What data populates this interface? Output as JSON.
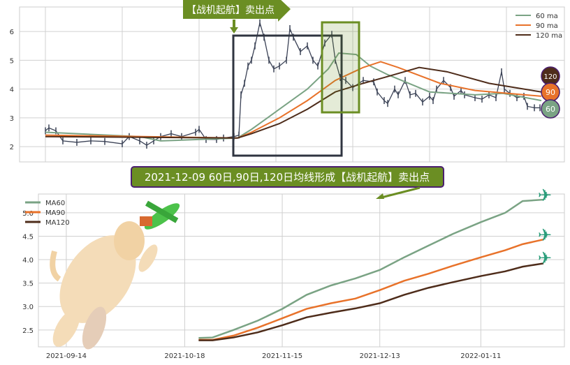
{
  "colors": {
    "ma60": "#7aa384",
    "ma90": "#e8722a",
    "ma120": "#4e2c1a",
    "price": "#3b4256",
    "banner": "#6b8e23",
    "banner_border": "#4b1f6f",
    "box": "#2f3440",
    "grid": "#d0d0d0"
  },
  "top_banner": "【战机起航】卖出点",
  "main_banner": "2021-12-09 60日,90日,120日均线形成【战机起航】卖出点",
  "badges": [
    "120",
    "90",
    "60"
  ],
  "chart_data": [
    {
      "type": "line",
      "title": "",
      "ylim": [
        1.47,
        6.85
      ],
      "yticks": [
        "2",
        "3",
        "4",
        "5",
        "6"
      ],
      "grid": true,
      "legend": {
        "placement": "top-right",
        "entries": [
          "60 ma",
          "90 ma",
          "120 ma"
        ]
      },
      "price": {
        "x": [
          0,
          5,
          15,
          25,
          45,
          65,
          85,
          110,
          120,
          135,
          145,
          155,
          165,
          180,
          195,
          215,
          220,
          230,
          245,
          255,
          270,
          277,
          280,
          285,
          290,
          295,
          300,
          307,
          313,
          320,
          327,
          335,
          345,
          350,
          355,
          365,
          375,
          383,
          390,
          400,
          410,
          415,
          422,
          430,
          440,
          455,
          470,
          475,
          485,
          490,
          500,
          505,
          515,
          522,
          530,
          540,
          550,
          555,
          560,
          570,
          580,
          585,
          595,
          600,
          615,
          625,
          635,
          645,
          653,
          657,
          665,
          675,
          685,
          690,
          700,
          708
        ],
        "values": [
          2.55,
          2.65,
          2.55,
          2.2,
          2.15,
          2.2,
          2.18,
          2.1,
          2.35,
          2.2,
          2.05,
          2.2,
          2.35,
          2.45,
          2.35,
          2.5,
          2.6,
          2.25,
          2.25,
          2.3,
          2.35,
          2.4,
          3.8,
          4.2,
          4.8,
          5.0,
          5.5,
          6.3,
          5.8,
          5.0,
          4.7,
          4.8,
          5.0,
          6.1,
          5.8,
          5.3,
          5.5,
          5.0,
          4.8,
          5.6,
          5.9,
          5.0,
          4.4,
          4.3,
          4.05,
          4.3,
          4.25,
          3.9,
          3.6,
          3.5,
          4.0,
          3.8,
          4.3,
          3.8,
          3.85,
          3.55,
          3.75,
          3.6,
          4.0,
          4.3,
          4.05,
          3.75,
          3.95,
          3.8,
          3.7,
          3.65,
          3.8,
          3.7,
          4.6,
          4.0,
          3.85,
          3.7,
          3.75,
          3.4,
          3.35,
          3.35
        ]
      },
      "series": [
        {
          "name": "60 ma",
          "x": [
            0,
            135,
            165,
            275,
            295,
            335,
            375,
            405,
            420,
            445,
            465,
            490,
            550,
            615,
            655,
            710
          ],
          "values": [
            2.5,
            2.35,
            2.2,
            2.3,
            2.6,
            3.3,
            4.0,
            4.7,
            5.25,
            5.2,
            4.8,
            4.5,
            3.9,
            3.8,
            3.85,
            3.6
          ]
        },
        {
          "name": "90 ma",
          "x": [
            0,
            275,
            295,
            335,
            375,
            415,
            455,
            480,
            505,
            565,
            615,
            710
          ],
          "values": [
            2.4,
            2.3,
            2.5,
            3.0,
            3.6,
            4.3,
            4.75,
            4.95,
            4.75,
            4.2,
            3.95,
            3.75
          ]
        },
        {
          "name": "120 ma",
          "x": [
            0,
            275,
            295,
            335,
            375,
            415,
            455,
            485,
            535,
            575,
            635,
            710
          ],
          "values": [
            2.35,
            2.3,
            2.45,
            2.8,
            3.3,
            3.9,
            4.2,
            4.4,
            4.75,
            4.6,
            4.2,
            3.9
          ]
        }
      ]
    },
    {
      "type": "line",
      "title": "",
      "xlim": [
        "2021-09-06",
        "2022-02-04"
      ],
      "ylim": [
        2.14,
        5.4
      ],
      "xticks": [
        "2021-09-14",
        "2021-10-18",
        "2021-11-15",
        "2021-12-13",
        "2022-01-11"
      ],
      "yticks": [
        "2.5",
        "3.0",
        "3.5",
        "4.0",
        "4.5",
        "5.0"
      ],
      "grid": true,
      "legend": {
        "placement": "top-left",
        "entries": [
          "MA60",
          "MA90",
          "MA120"
        ]
      },
      "x": [
        "2021-10-22",
        "2021-10-26",
        "2021-11-01",
        "2021-11-08",
        "2021-11-15",
        "2021-11-22",
        "2021-11-29",
        "2021-12-06",
        "2021-12-13",
        "2021-12-20",
        "2021-12-27",
        "2022-01-03",
        "2022-01-11",
        "2022-01-18",
        "2022-01-23",
        "2022-01-29"
      ],
      "series": [
        {
          "name": "MA60",
          "values": [
            2.33,
            2.34,
            2.5,
            2.7,
            2.95,
            3.25,
            3.45,
            3.6,
            3.78,
            4.05,
            4.3,
            4.55,
            4.8,
            5.0,
            5.25,
            5.28
          ]
        },
        {
          "name": "MA90",
          "values": [
            2.29,
            2.29,
            2.38,
            2.55,
            2.75,
            2.95,
            3.07,
            3.17,
            3.35,
            3.55,
            3.7,
            3.87,
            4.05,
            4.2,
            4.33,
            4.43
          ]
        },
        {
          "name": "MA120",
          "values": [
            2.28,
            2.28,
            2.34,
            2.45,
            2.6,
            2.77,
            2.87,
            2.96,
            3.07,
            3.25,
            3.4,
            3.52,
            3.65,
            3.75,
            3.85,
            3.92
          ]
        }
      ]
    }
  ]
}
